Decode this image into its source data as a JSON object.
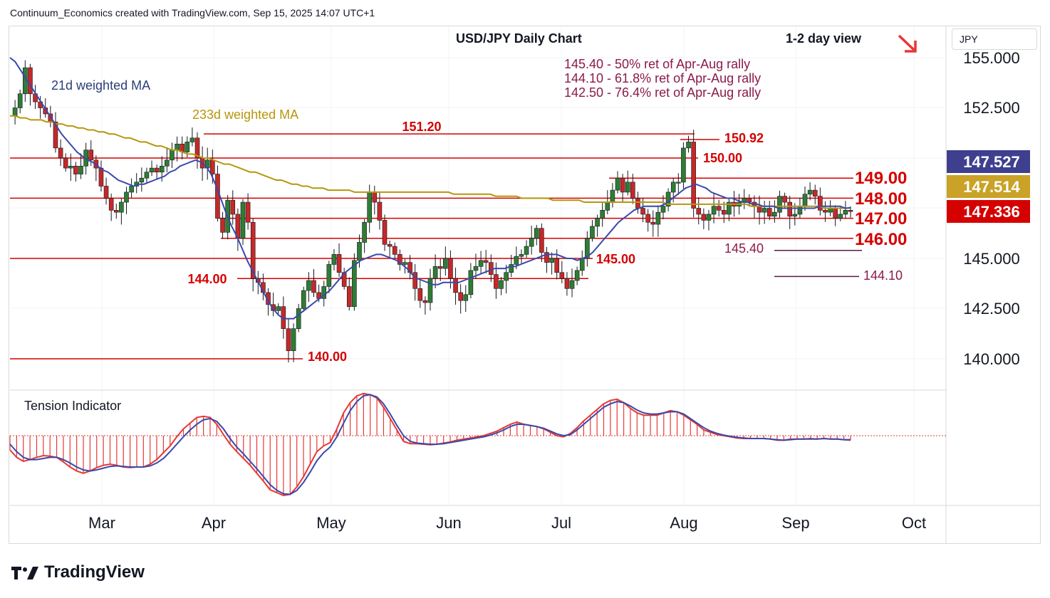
{
  "header": {
    "text": "Continuum_Economics created with TradingView.com, Sep 15, 2025 14:07 UTC+1"
  },
  "footer": {
    "brand": "TradingView",
    "logo_icon": "tradingview-logo-icon"
  },
  "axis": {
    "currency": "JPY"
  },
  "colors": {
    "up": "#2e7d32",
    "down": "#c62828",
    "ma21": "#3949ab",
    "ma233": "#b8960b",
    "level": "#d50000",
    "fib": "#8b1a4a",
    "price_blue": "#3f3f8f",
    "price_gold": "#c9a227",
    "price_red": "#d50000"
  },
  "chart_data": {
    "type": "candlestick",
    "title": "USD/JPY Daily Chart",
    "subtitle": "1-2 day view",
    "view_direction": "down-right arrow",
    "ylim": [
      138.5,
      156.5
    ],
    "yticks": [
      "155.000",
      "152.500",
      "147.527",
      "147.514",
      "147.336",
      "145.000",
      "142.500",
      "140.000"
    ],
    "xticks": [
      "Mar",
      "Apr",
      "May",
      "Jun",
      "Jul",
      "Aug",
      "Sep",
      "Oct"
    ],
    "ma_labels": {
      "ma21": "21d weighted MA",
      "ma233": "233d weighted MA"
    },
    "fib_notes": [
      "145.40 - 50% ret of Apr-Aug rally",
      "144.10 - 61.8% ret of Apr-Aug rally",
      "142.50 - 76.4% ret of Apr-Aug rally"
    ],
    "levels": [
      {
        "label": "151.20",
        "value": 151.2
      },
      {
        "label": "150.92",
        "value": 150.92
      },
      {
        "label": "150.00",
        "value": 150.0
      },
      {
        "label": "149.00",
        "value": 149.0
      },
      {
        "label": "148.00",
        "value": 148.0
      },
      {
        "label": "147.00",
        "value": 147.0
      },
      {
        "label": "146.00",
        "value": 146.0
      },
      {
        "label": "145.00",
        "value": 145.0
      },
      {
        "label": "144.00",
        "value": 144.0
      },
      {
        "label": "140.00",
        "value": 140.0
      }
    ],
    "fib_levels": [
      {
        "label": "145.40",
        "value": 145.4
      },
      {
        "label": "144.10",
        "value": 144.1
      }
    ],
    "price_tags": [
      {
        "label": "147.527",
        "value": 147.527,
        "role": "ma21"
      },
      {
        "label": "147.514",
        "value": 147.514,
        "role": "ma233"
      },
      {
        "label": "147.336",
        "value": 147.336,
        "role": "last"
      }
    ],
    "indicator": {
      "title": "Tension Indicator"
    },
    "closes": [
      152.1,
      152.5,
      153.2,
      154.5,
      153.2,
      152.8,
      152.5,
      152.2,
      151.8,
      150.5,
      150.0,
      149.5,
      149.6,
      149.2,
      149.6,
      150.4,
      149.9,
      149.5,
      148.6,
      148.0,
      147.4,
      147.3,
      147.8,
      148.3,
      148.6,
      148.8,
      149.0,
      149.3,
      149.5,
      149.3,
      149.6,
      149.9,
      150.4,
      150.7,
      150.3,
      150.8,
      151.0,
      150.0,
      149.5,
      149.9,
      149.2,
      147.0,
      146.3,
      147.9,
      147.2,
      146.0,
      147.8,
      146.8,
      144.0,
      143.8,
      143.3,
      142.7,
      142.4,
      142.6,
      141.5,
      140.4,
      141.5,
      142.5,
      143.4,
      143.9,
      143.3,
      143.0,
      143.6,
      144.7,
      145.2,
      144.3,
      143.6,
      142.6,
      144.9,
      145.8,
      146.8,
      148.3,
      147.8,
      146.9,
      145.7,
      145.6,
      145.2,
      144.7,
      144.8,
      144.3,
      143.5,
      142.9,
      142.8,
      144.0,
      144.6,
      144.5,
      145.0,
      144.0,
      143.3,
      142.9,
      143.2,
      144.4,
      144.6,
      144.9,
      144.8,
      144.2,
      143.5,
      143.9,
      144.3,
      144.7,
      145.1,
      145.2,
      145.6,
      146.0,
      146.5,
      145.3,
      144.8,
      145.0,
      144.3,
      144.0,
      143.5,
      143.9,
      144.4,
      145.0,
      146.0,
      146.6,
      147.0,
      147.4,
      147.8,
      148.4,
      149.0,
      148.3,
      148.8,
      148.0,
      147.5,
      147.2,
      146.8,
      146.7,
      147.3,
      147.6,
      148.3,
      148.8,
      148.8,
      150.5,
      150.8,
      147.5,
      147.2,
      146.9,
      147.2,
      147.6,
      147.4,
      147.2,
      147.8,
      147.6,
      147.8,
      148.0,
      147.8,
      147.6,
      147.3,
      147.5,
      147.1,
      147.3,
      148.1,
      147.8,
      147.1,
      147.2,
      147.6,
      148.2,
      148.4,
      148.1,
      147.4,
      147.3,
      147.5,
      147.0,
      147.2,
      147.4,
      147.336
    ],
    "ma21": [
      155.0,
      154.8,
      154.4,
      154.0,
      153.6,
      153.2,
      152.8,
      152.4,
      152.0,
      151.6,
      151.2,
      150.9,
      150.6,
      150.3,
      150.1,
      149.9,
      149.8,
      149.6,
      149.4,
      149.3,
      149.1,
      148.9,
      148.8,
      148.7,
      148.6,
      148.7,
      148.7,
      148.8,
      148.9,
      149.0,
      149.1,
      149.3,
      149.4,
      149.6,
      149.7,
      149.8,
      149.9,
      149.8,
      149.6,
      149.2,
      148.6,
      147.9,
      147.2,
      146.6,
      146.1,
      145.5,
      144.9,
      144.4,
      143.9,
      143.4,
      142.9,
      142.5,
      142.2,
      142.0,
      142.0,
      142.0,
      142.2,
      142.4,
      142.6,
      142.8,
      143.0,
      143.2,
      143.4,
      143.7,
      144.0,
      144.3,
      144.5,
      144.7,
      144.9,
      145.0,
      145.1,
      145.2,
      145.2,
      145.1,
      145.0,
      144.9,
      144.7,
      144.5,
      144.2,
      144.0,
      143.9,
      143.8,
      143.7,
      143.7,
      143.8,
      143.8,
      143.8,
      143.8,
      143.9,
      144.0,
      144.1,
      144.2,
      144.3,
      144.4,
      144.5,
      144.5,
      144.5,
      144.6,
      144.6,
      144.7,
      144.8,
      144.9,
      145.0,
      145.1,
      145.2,
      145.2,
      145.2,
      145.1,
      145.0,
      145.0,
      144.9,
      145.0,
      145.1,
      145.3,
      145.6,
      145.9,
      146.2,
      146.5,
      146.8,
      147.0,
      147.2,
      147.4,
      147.5,
      147.6,
      147.6,
      147.6,
      147.6,
      147.7,
      147.9,
      148.1,
      148.3,
      148.5,
      148.6,
      148.7,
      148.6,
      148.5,
      148.3,
      148.2,
      148.1,
      148.0,
      148.0,
      147.9,
      147.8,
      147.8,
      147.7,
      147.7,
      147.6,
      147.6,
      147.6,
      147.5,
      147.5,
      147.5,
      147.5,
      147.5,
      147.5,
      147.5,
      147.5,
      147.6,
      147.6,
      147.6,
      147.6,
      147.6,
      147.5,
      147.527
    ],
    "ma233": [
      152.1,
      152.1,
      152.0,
      152.0,
      151.9,
      151.9,
      151.9,
      151.8,
      151.8,
      151.7,
      151.7,
      151.6,
      151.6,
      151.5,
      151.5,
      151.4,
      151.4,
      151.3,
      151.3,
      151.2,
      151.2,
      151.1,
      151.0,
      151.0,
      150.9,
      150.8,
      150.8,
      150.7,
      150.6,
      150.6,
      150.5,
      150.4,
      150.4,
      150.3,
      150.2,
      150.2,
      150.1,
      150.0,
      150.0,
      149.9,
      149.8,
      149.7,
      149.7,
      149.6,
      149.5,
      149.4,
      149.3,
      149.3,
      149.2,
      149.1,
      149.0,
      148.9,
      148.9,
      148.8,
      148.7,
      148.7,
      148.6,
      148.6,
      148.5,
      148.5,
      148.5,
      148.4,
      148.4,
      148.4,
      148.4,
      148.4,
      148.3,
      148.3,
      148.3,
      148.3,
      148.3,
      148.3,
      148.3,
      148.3,
      148.3,
      148.3,
      148.3,
      148.3,
      148.3,
      148.3,
      148.3,
      148.3,
      148.3,
      148.3,
      148.3,
      148.2,
      148.2,
      148.2,
      148.2,
      148.2,
      148.2,
      148.2,
      148.2,
      148.1,
      148.1,
      148.1,
      148.1,
      148.1,
      148.0,
      148.0,
      148.0,
      148.0,
      148.0,
      148.0,
      147.9,
      147.9,
      147.9,
      147.9,
      147.9,
      147.9,
      147.8,
      147.8,
      147.8,
      147.8,
      147.8,
      147.8,
      147.8,
      147.8,
      147.8,
      147.8,
      147.8,
      147.8,
      147.8,
      147.8,
      147.8,
      147.8,
      147.7,
      147.7,
      147.7,
      147.7,
      147.7,
      147.7,
      147.7,
      147.7,
      147.7,
      147.7,
      147.7,
      147.7,
      147.7,
      147.7,
      147.7,
      147.7,
      147.6,
      147.6,
      147.6,
      147.6,
      147.6,
      147.6,
      147.6,
      147.6,
      147.6,
      147.6,
      147.6,
      147.6,
      147.6,
      147.6,
      147.5,
      147.5,
      147.5,
      147.5,
      147.5,
      147.514
    ],
    "tension_fast": [
      -0.25,
      -0.38,
      -0.45,
      -0.42,
      -0.38,
      -0.35,
      -0.36,
      -0.38,
      -0.46,
      -0.55,
      -0.62,
      -0.66,
      -0.62,
      -0.56,
      -0.52,
      -0.5,
      -0.52,
      -0.55,
      -0.56,
      -0.55,
      -0.55,
      -0.5,
      -0.42,
      -0.3,
      -0.18,
      -0.02,
      0.12,
      0.22,
      0.32,
      0.34,
      0.32,
      0.2,
      0.02,
      -0.15,
      -0.28,
      -0.4,
      -0.52,
      -0.66,
      -0.8,
      -0.95,
      -1.0,
      -1.05,
      -1.03,
      -0.9,
      -0.72,
      -0.5,
      -0.28,
      -0.18,
      -0.12,
      0.12,
      0.4,
      0.58,
      0.7,
      0.74,
      0.72,
      0.66,
      0.5,
      0.3,
      0.1,
      -0.1,
      -0.14,
      -0.14,
      -0.15,
      -0.16,
      -0.15,
      -0.13,
      -0.11,
      -0.08,
      -0.06,
      -0.04,
      -0.02,
      0.0,
      0.04,
      0.08,
      0.14,
      0.2,
      0.24,
      0.2,
      0.18,
      0.16,
      0.12,
      0.06,
      0.0,
      -0.02,
      0.04,
      0.14,
      0.26,
      0.36,
      0.46,
      0.56,
      0.62,
      0.64,
      0.58,
      0.48,
      0.4,
      0.36,
      0.36,
      0.36,
      0.4,
      0.44,
      0.42,
      0.36,
      0.28,
      0.2,
      0.1,
      0.06,
      0.02,
      0.0,
      -0.02,
      -0.04,
      -0.05,
      -0.05,
      -0.05,
      -0.05,
      -0.06,
      -0.08,
      -0.08,
      -0.06,
      -0.06,
      -0.06,
      -0.05,
      -0.06,
      -0.05,
      -0.06,
      -0.06,
      -0.07,
      -0.08
    ],
    "tension_slow": [
      -0.15,
      -0.28,
      -0.38,
      -0.42,
      -0.42,
      -0.4,
      -0.38,
      -0.38,
      -0.42,
      -0.48,
      -0.55,
      -0.6,
      -0.62,
      -0.6,
      -0.57,
      -0.54,
      -0.53,
      -0.54,
      -0.55,
      -0.55,
      -0.55,
      -0.53,
      -0.48,
      -0.4,
      -0.28,
      -0.15,
      -0.02,
      0.1,
      0.2,
      0.28,
      0.3,
      0.25,
      0.12,
      -0.05,
      -0.2,
      -0.32,
      -0.45,
      -0.58,
      -0.72,
      -0.86,
      -0.96,
      -1.02,
      -1.03,
      -0.96,
      -0.82,
      -0.64,
      -0.44,
      -0.3,
      -0.2,
      -0.02,
      0.22,
      0.44,
      0.6,
      0.7,
      0.72,
      0.68,
      0.56,
      0.38,
      0.18,
      0.0,
      -0.1,
      -0.13,
      -0.14,
      -0.15,
      -0.15,
      -0.14,
      -0.12,
      -0.1,
      -0.08,
      -0.06,
      -0.04,
      -0.02,
      0.01,
      0.05,
      0.1,
      0.16,
      0.2,
      0.2,
      0.18,
      0.16,
      0.13,
      0.08,
      0.03,
      0.0,
      0.02,
      0.1,
      0.2,
      0.3,
      0.4,
      0.5,
      0.56,
      0.6,
      0.58,
      0.52,
      0.45,
      0.4,
      0.38,
      0.38,
      0.4,
      0.42,
      0.42,
      0.38,
      0.3,
      0.22,
      0.14,
      0.08,
      0.04,
      0.01,
      -0.01,
      -0.03,
      -0.04,
      -0.05,
      -0.05,
      -0.05,
      -0.06,
      -0.07,
      -0.08,
      -0.07,
      -0.06,
      -0.06,
      -0.06,
      -0.06,
      -0.05,
      -0.06,
      -0.06,
      -0.07,
      -0.07
    ]
  }
}
